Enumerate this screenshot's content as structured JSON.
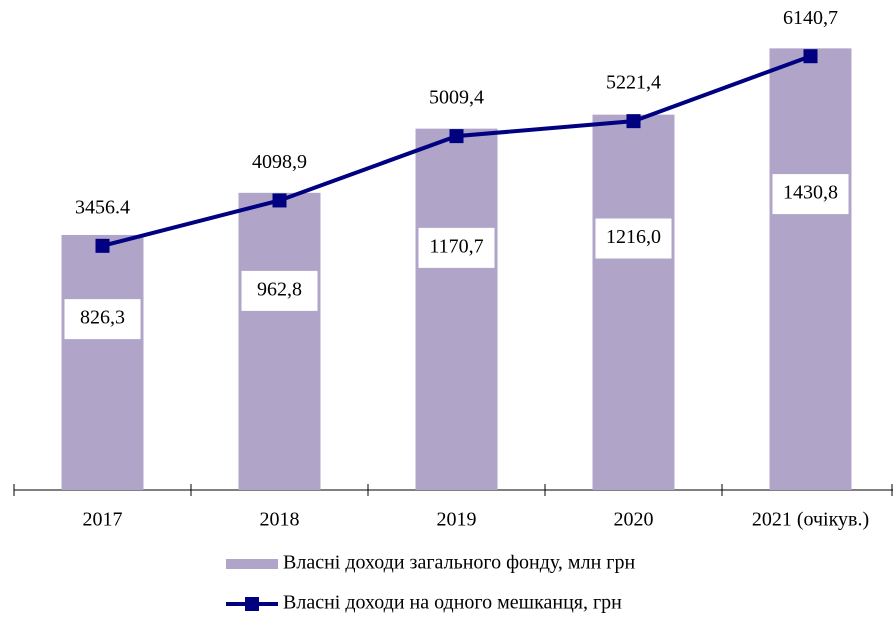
{
  "chart_data": {
    "type": "bar_line",
    "categories": [
      "2017",
      "2018",
      "2019",
      "2020",
      "2021 (очікув.)"
    ],
    "series": [
      {
        "name": "Власні доходи загального фонду, млн грн",
        "type": "bar",
        "color": "#b0a4c8",
        "values": [
          826.3,
          962.8,
          1170.7,
          1216.0,
          1430.8
        ],
        "value_labels": [
          "826,3",
          "962,8",
          "1170,7",
          "1216,0",
          "1430,8"
        ]
      },
      {
        "name": "Власні доходи на одного мешканця, грн",
        "type": "line",
        "axis": "y2",
        "color": "#000080",
        "values": [
          3456.4,
          4098.9,
          5009.4,
          5221.4,
          6140.7
        ],
        "value_labels": [
          "3456.4",
          "4098,9",
          "5009,4",
          "5221,4",
          "6140,7"
        ]
      }
    ],
    "ylim": [
      0,
      1500
    ],
    "y2lim": [
      0,
      6540
    ],
    "legend": "bottom"
  }
}
